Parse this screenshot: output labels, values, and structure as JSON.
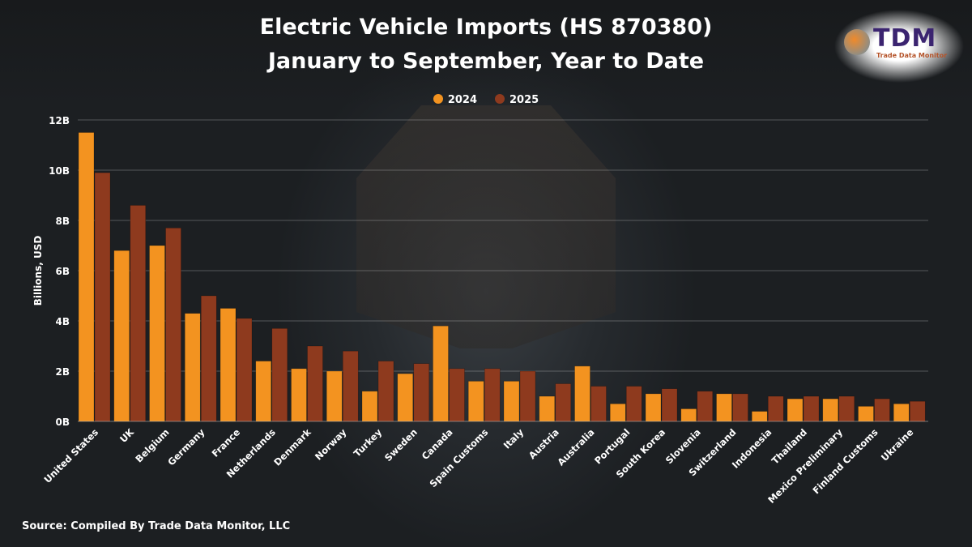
{
  "logo": {
    "text": "TDM",
    "subtitle": "Trade Data Monitor"
  },
  "source": "Source: Compiled By Trade Data Monitor, LLC",
  "colors": {
    "s2024": "#F39320",
    "s2025": "#8E3A1E"
  },
  "chart_data": {
    "type": "bar",
    "title": "Electric Vehicle Imports (HS 870380)",
    "subtitle": "January to September, Year to Date",
    "xlabel": "",
    "ylabel": "Billions, USD",
    "ylim": [
      0,
      12
    ],
    "yticks": [
      {
        "v": 0,
        "label": "0B"
      },
      {
        "v": 2,
        "label": "2B"
      },
      {
        "v": 4,
        "label": "4B"
      },
      {
        "v": 6,
        "label": "6B"
      },
      {
        "v": 8,
        "label": "8B"
      },
      {
        "v": 10,
        "label": "10B"
      },
      {
        "v": 12,
        "label": "12B"
      }
    ],
    "grid": true,
    "legend_position": "top-center",
    "categories": [
      "United States",
      "UK",
      "Belgium",
      "Germany",
      "France",
      "Netherlands",
      "Denmark",
      "Norway",
      "Turkey",
      "Sweden",
      "Canada",
      "Spain Customs",
      "Italy",
      "Austria",
      "Australia",
      "Portugal",
      "South Korea",
      "Slovenia",
      "Switzerland",
      "Indonesia",
      "Thailand",
      "Mexico Preliminary",
      "Finland Customs",
      "Ukraine"
    ],
    "series": [
      {
        "name": "2024",
        "values": [
          11.5,
          6.8,
          7.0,
          4.3,
          4.5,
          2.4,
          2.1,
          2.0,
          1.2,
          1.9,
          3.8,
          1.6,
          1.6,
          1.0,
          2.2,
          0.7,
          1.1,
          0.5,
          1.1,
          0.4,
          0.9,
          0.9,
          0.6,
          0.7
        ]
      },
      {
        "name": "2025",
        "values": [
          9.9,
          8.6,
          7.7,
          5.0,
          4.1,
          3.7,
          3.0,
          2.8,
          2.4,
          2.3,
          2.1,
          2.1,
          2.0,
          1.5,
          1.4,
          1.4,
          1.3,
          1.2,
          1.1,
          1.0,
          1.0,
          1.0,
          0.9,
          0.8
        ]
      }
    ]
  }
}
